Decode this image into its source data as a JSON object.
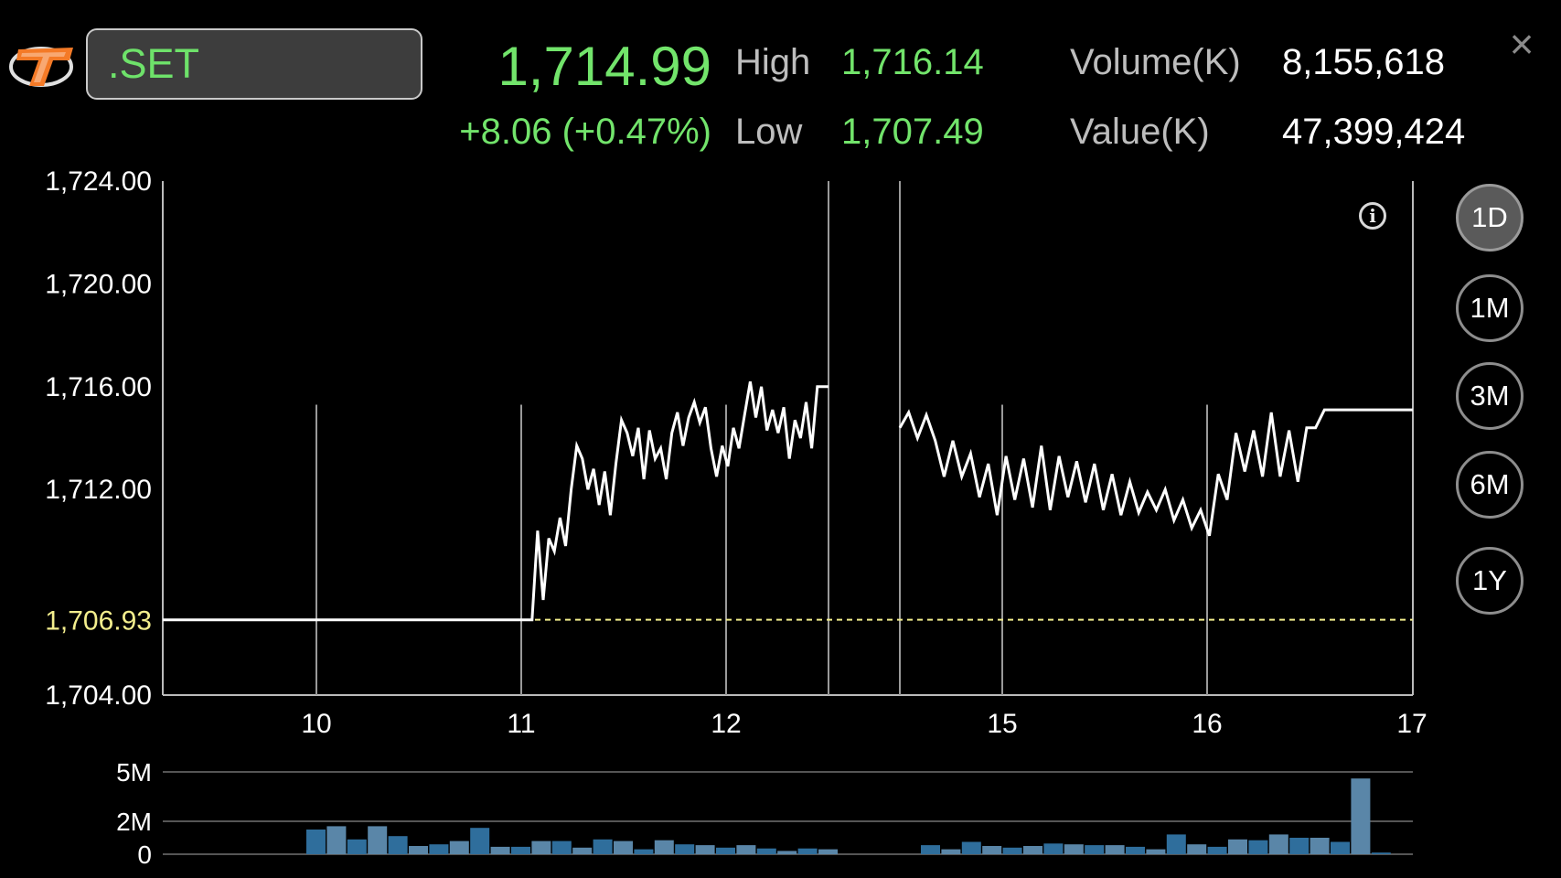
{
  "header": {
    "symbol": ".SET",
    "last": "1,714.99",
    "change": "+8.06 (+0.47%)",
    "high_label": "High",
    "high": "1,716.14",
    "low_label": "Low",
    "low": "1,707.49",
    "volume_label": "Volume(K)",
    "volume": "8,155,618",
    "value_label": "Value(K)",
    "value": "47,399,424",
    "close_icon": "close-icon",
    "logo_icon": "brand-logo-icon"
  },
  "periods": [
    {
      "label": "1D",
      "active": true
    },
    {
      "label": "1M",
      "active": false
    },
    {
      "label": "3M",
      "active": false
    },
    {
      "label": "6M",
      "active": false
    },
    {
      "label": "1Y",
      "active": false
    }
  ],
  "colors": {
    "up": "#72e46b",
    "reference_line": "#f3ee8d",
    "volume_bar": "#2f6e9c",
    "volume_bar_alt": "#5a86a8"
  },
  "chart_data": [
    {
      "type": "line",
      "ylim": [
        1704,
        1724
      ],
      "y_ticks": [
        "1,724.00",
        "1,720.00",
        "1,716.00",
        "1,712.00",
        "1,704.00"
      ],
      "reference_value": 1706.93,
      "reference_label": "1,706.93",
      "x_ticks": [
        "10",
        "11",
        "12",
        "15",
        "16",
        "17"
      ],
      "series": [
        {
          "morning": [
            1706.93,
            1706.93,
            1706.93,
            1706.93,
            1706.93,
            1706.93,
            1706.93,
            1706.93,
            1706.93,
            1706.93,
            1706.93,
            1706.93,
            1706.93,
            1706.93,
            1706.93,
            1706.93,
            1706.93,
            1706.93,
            1706.93,
            1706.93,
            1706.93,
            1706.93,
            1706.93,
            1706.93,
            1706.93,
            1706.93,
            1706.93,
            1706.93,
            1706.93,
            1706.93,
            1706.93,
            1706.93,
            1706.93,
            1706.93,
            1706.93,
            1706.93,
            1706.93,
            1706.93,
            1706.93,
            1706.93,
            1706.93,
            1706.93,
            1706.93,
            1706.93,
            1706.93,
            1706.93,
            1706.93,
            1706.93,
            1706.93,
            1706.93,
            1706.93,
            1706.93,
            1706.93,
            1706.93,
            1706.93,
            1706.93,
            1706.93,
            1706.93,
            1706.93,
            1706.93,
            1706.93,
            1706.93,
            1706.93,
            1706.93,
            1706.93,
            1706.93,
            1706.93,
            1710.4,
            1707.7,
            1710.1,
            1709.6,
            1710.9,
            1709.8,
            1712.0,
            1713.7,
            1713.2,
            1712.0,
            1712.8,
            1711.4,
            1712.7,
            1711.0,
            1713.0,
            1714.7,
            1714.2,
            1713.3,
            1714.4,
            1712.4,
            1714.3,
            1713.2,
            1713.6,
            1712.4,
            1714.2,
            1715.0,
            1713.7,
            1714.8,
            1715.4,
            1714.6,
            1715.2,
            1713.6,
            1712.5,
            1713.7,
            1712.9,
            1714.4,
            1713.6,
            1714.9,
            1716.2,
            1714.8,
            1716.0,
            1714.3,
            1715.1,
            1714.2,
            1715.2,
            1713.2,
            1714.7,
            1714.0,
            1715.4,
            1713.6,
            1716.0,
            1716.0,
            1716.0
          ],
          "afternoon": [
            1714.4,
            1715.0,
            1714.0,
            1714.9,
            1713.9,
            1712.5,
            1713.9,
            1712.5,
            1713.4,
            1711.7,
            1713.0,
            1711.0,
            1713.3,
            1711.6,
            1713.2,
            1711.3,
            1713.7,
            1711.2,
            1713.3,
            1711.7,
            1713.1,
            1711.5,
            1713.0,
            1711.2,
            1712.6,
            1711.0,
            1712.3,
            1711.1,
            1711.9,
            1711.2,
            1712.0,
            1710.8,
            1711.6,
            1710.5,
            1711.2,
            1710.2,
            1712.6,
            1711.6,
            1714.2,
            1712.7,
            1714.3,
            1712.5,
            1715.0,
            1712.5,
            1714.3,
            1712.3,
            1714.4,
            1714.4,
            1715.1,
            1715.1,
            1715.1,
            1715.1,
            1715.1,
            1715.1,
            1715.1,
            1715.1,
            1715.1,
            1715.1,
            1715.1
          ]
        }
      ]
    },
    {
      "type": "bar",
      "ylim": [
        0,
        5
      ],
      "y_ticks": [
        "5M",
        "2M",
        "0"
      ],
      "values": [
        1.5,
        1.7,
        0.9,
        1.7,
        1.1,
        0.5,
        0.6,
        0.8,
        1.6,
        0.45,
        0.45,
        0.8,
        0.8,
        0.4,
        0.9,
        0.8,
        0.3,
        0.85,
        0.6,
        0.55,
        0.4,
        0.55,
        0.35,
        0.2,
        0.35,
        0.3,
        0.0,
        0.0,
        0.0,
        0.0,
        0.55,
        0.3,
        0.75,
        0.5,
        0.4,
        0.5,
        0.65,
        0.6,
        0.55,
        0.55,
        0.45,
        0.3,
        1.2,
        0.6,
        0.45,
        0.9,
        0.85,
        1.2,
        1.0,
        1.0,
        0.75,
        4.6,
        0.1
      ]
    }
  ]
}
